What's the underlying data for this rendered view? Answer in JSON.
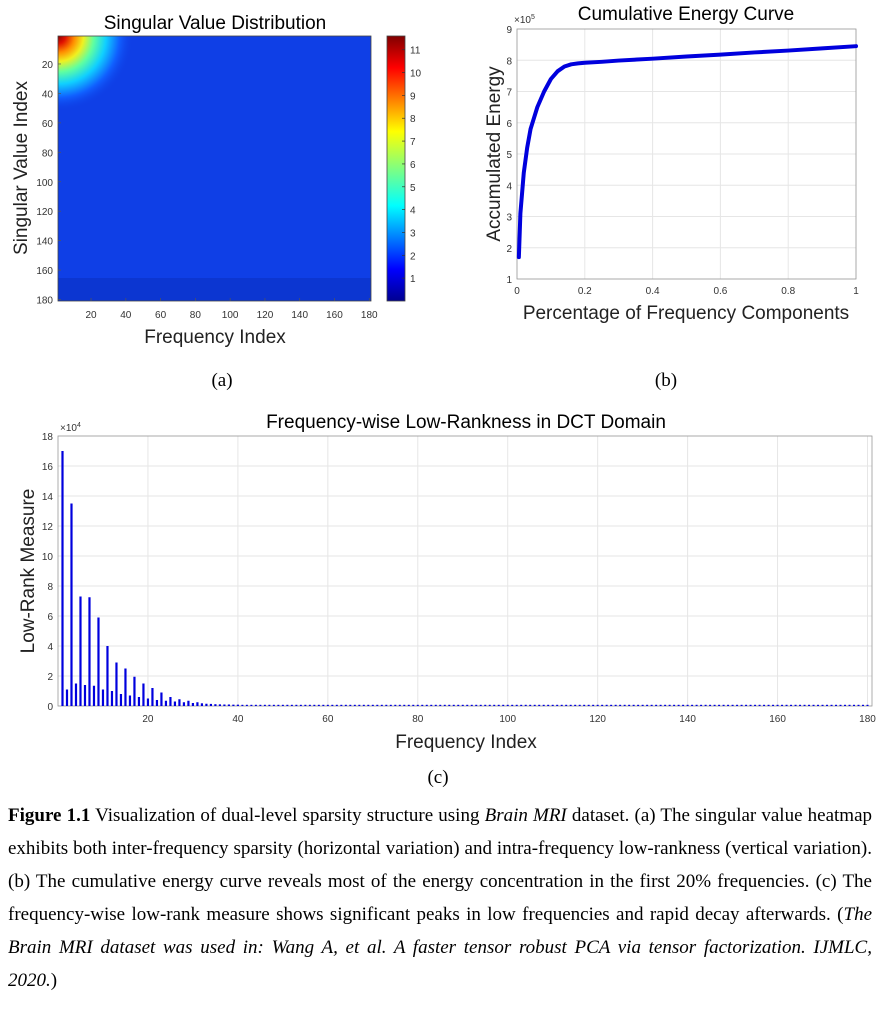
{
  "chart_data": [
    {
      "type": "heatmap",
      "title": "Singular Value Distribution",
      "xlabel": "Frequency Index",
      "ylabel": "Singular Value Index",
      "xlim": [
        1,
        181
      ],
      "ylim": [
        1,
        181
      ],
      "xticks": [
        "20",
        "40",
        "60",
        "80",
        "100",
        "120",
        "140",
        "160",
        "180"
      ],
      "yticks": [
        "20",
        "40",
        "60",
        "80",
        "100",
        "120",
        "140",
        "160",
        "180"
      ],
      "colorbar": {
        "min": 0,
        "max": 11.6,
        "ticks": [
          "1",
          "2",
          "3",
          "4",
          "5",
          "6",
          "7",
          "8",
          "9",
          "10",
          "11"
        ]
      },
      "colormap": "jet",
      "colors": {
        "background": "#0f3fe6",
        "bottom_band": "#0b2fbf"
      },
      "description": "High values (up to ~11) concentrated at top-left (low singular value index, low frequency index), decaying rapidly; values near 0 elsewhere."
    },
    {
      "type": "line",
      "title": "Cumulative Energy Curve",
      "xlabel": "Percentage of Frequency Components",
      "ylabel": "Accumulated Energy",
      "xlim": [
        0,
        1
      ],
      "ylim": [
        1,
        9
      ],
      "y_exponent": "×10",
      "y_exponent_power": "5",
      "xticks": [
        "0",
        "0.2",
        "0.4",
        "0.6",
        "0.8",
        "1"
      ],
      "yticks": [
        "1",
        "2",
        "3",
        "4",
        "5",
        "6",
        "7",
        "8",
        "9"
      ],
      "grid": true,
      "series": [
        {
          "color": "#0000dd",
          "x": [
            0.0055,
            0.01,
            0.02,
            0.03,
            0.04,
            0.05,
            0.06,
            0.08,
            0.1,
            0.12,
            0.14,
            0.16,
            0.18,
            0.2,
            0.25,
            0.3,
            0.4,
            0.5,
            0.6,
            0.7,
            0.8,
            0.9,
            1.0
          ],
          "y": [
            1.7,
            3.1,
            4.4,
            5.2,
            5.8,
            6.15,
            6.5,
            7.0,
            7.4,
            7.65,
            7.8,
            7.87,
            7.9,
            7.92,
            7.95,
            7.99,
            8.05,
            8.12,
            8.18,
            8.25,
            8.31,
            8.38,
            8.45
          ]
        }
      ]
    },
    {
      "type": "bar",
      "title": "Frequency-wise Low-Rankness in DCT Domain",
      "xlabel": "Frequency Index",
      "ylabel": "Low-Rank Measure",
      "xlim": [
        0,
        181
      ],
      "ylim": [
        0,
        18
      ],
      "y_exponent": "×10",
      "y_exponent_power": "4",
      "xticks": [
        "20",
        "40",
        "60",
        "80",
        "100",
        "120",
        "140",
        "160",
        "180"
      ],
      "yticks": [
        "0",
        "2",
        "4",
        "6",
        "8",
        "10",
        "12",
        "14",
        "16",
        "18"
      ],
      "grid": true,
      "color": "#0000dd",
      "x": [
        1,
        2,
        3,
        4,
        5,
        6,
        7,
        8,
        9,
        10,
        11,
        12,
        13,
        14,
        15,
        16,
        17,
        18,
        19,
        20,
        21,
        22,
        23,
        24,
        25,
        26,
        27,
        28,
        29,
        30,
        31,
        32,
        33,
        34,
        35,
        36,
        37,
        38,
        39,
        40
      ],
      "values": [
        17.0,
        1.1,
        13.5,
        1.5,
        7.3,
        1.4,
        7.25,
        1.35,
        5.9,
        1.1,
        4.0,
        1.0,
        2.9,
        0.8,
        2.5,
        0.7,
        1.95,
        0.6,
        1.5,
        0.5,
        1.2,
        0.4,
        0.9,
        0.35,
        0.6,
        0.3,
        0.45,
        0.25,
        0.35,
        0.2,
        0.25,
        0.18,
        0.15,
        0.14,
        0.12,
        0.11,
        0.1,
        0.1,
        0.09,
        0.09
      ],
      "tail_value": 0.08
    }
  ],
  "subcaptions": {
    "a": "(a)",
    "b": "(b)",
    "c": "(c)"
  },
  "caption": {
    "label": "Figure 1.1",
    "text_1": " Visualization of dual-level sparsity structure using ",
    "dataset_italic": "Brain MRI",
    "text_2": " dataset. (a) The singular value heatmap exhibits both inter-frequency sparsity (horizontal variation) and intra-frequency low-rankness (vertical variation). (b) The cumulative energy curve reveals most of the energy concentration in the first 20% frequencies. (c) The frequency-wise low-rank measure shows significant peaks in low frequencies and rapid decay afterwards. (",
    "citation_italic": "The Brain MRI dataset was used in: Wang A, et al. A faster tensor robust PCA via tensor factorization. IJMLC, 2020.",
    "text_3": ")"
  }
}
